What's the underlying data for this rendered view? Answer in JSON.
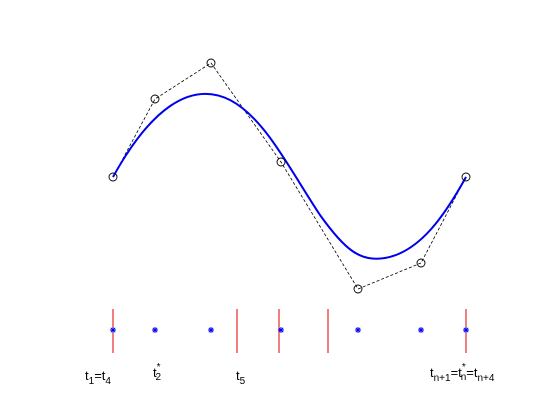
{
  "knot_labels": [
    [
      "t",
      "1",
      "=t",
      "4"
    ],
    [
      "t",
      "*",
      "2"
    ],
    [
      "t",
      "5"
    ],
    [
      "t",
      "n+1",
      "=t",
      "*",
      "n",
      "=t",
      "n+4"
    ]
  ]
}
